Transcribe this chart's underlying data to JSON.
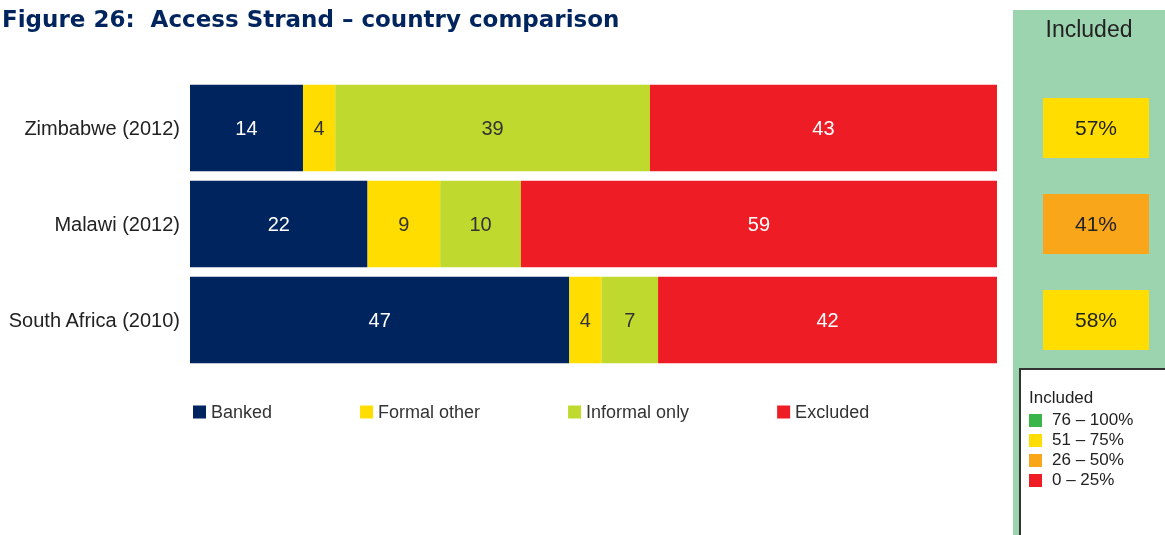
{
  "chart_data": {
    "type": "bar",
    "title": "Figure 26:  Access Strand – country comparison",
    "orientation": "horizontal",
    "stacked": true,
    "data_labels": true,
    "legend": "bottom",
    "tick_labels": "y",
    "xlim": [
      0,
      100
    ],
    "categories": [
      "Zimbabwe (2012)",
      "Malawi (2012)",
      "South Africa (2010)"
    ],
    "series": [
      {
        "name": "Banked",
        "color": "#00245d",
        "values": [
          14,
          22,
          47
        ]
      },
      {
        "name": "Formal other",
        "color": "#ffdd00",
        "values": [
          4,
          9,
          4
        ]
      },
      {
        "name": "Informal only",
        "color": "#c0d92e",
        "values": [
          39,
          10,
          7
        ]
      },
      {
        "name": "Excluded",
        "color": "#ee1c25",
        "values": [
          43,
          59,
          42
        ]
      }
    ],
    "annotations": [
      "Included",
      "57%",
      "41%",
      "58%",
      "Included",
      "76 – 100%",
      "51 – 75%",
      "26 – 50%",
      "0 – 25%"
    ]
  }
}
